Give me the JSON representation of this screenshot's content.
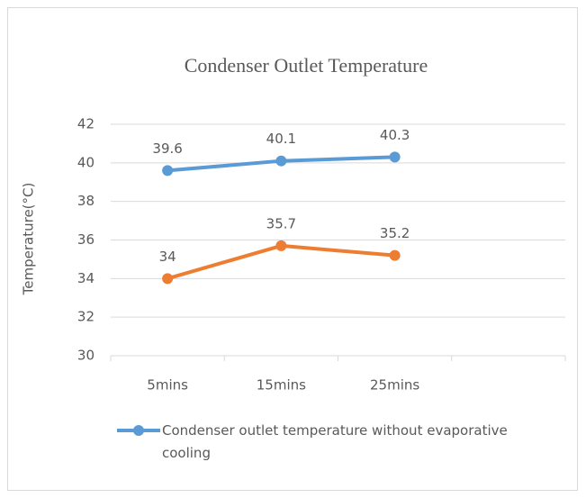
{
  "chart_data": {
    "type": "line",
    "title": "Condenser Outlet Temperature",
    "y_label": "Temperature(°C)",
    "categories": [
      "5mins",
      "15mins",
      "25mins",
      null
    ],
    "series": [
      {
        "name": "Condenser outlet temperature without evaporative cooling",
        "color": "#5b9bd5",
        "values": [
          39.6,
          40.1,
          40.3,
          null
        ]
      },
      {
        "color": "#ed7d31",
        "values": [
          34,
          35.7,
          35.2,
          null
        ]
      }
    ],
    "ylim": [
      30,
      42
    ],
    "yticks": [
      30,
      32,
      34,
      36,
      38,
      40,
      42
    ],
    "grid": true,
    "legend": "bottom"
  }
}
